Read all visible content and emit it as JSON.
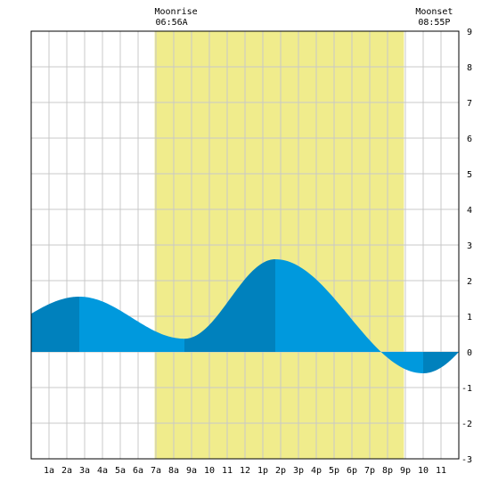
{
  "chart_data": {
    "type": "area",
    "title": "",
    "xlabel": "",
    "ylabel": "",
    "x_range": [
      0,
      24
    ],
    "ylim": [
      -3,
      9
    ],
    "grid": true,
    "x_ticks": [
      {
        "hour": 1,
        "label": "1a"
      },
      {
        "hour": 2,
        "label": "2a"
      },
      {
        "hour": 3,
        "label": "3a"
      },
      {
        "hour": 4,
        "label": "4a"
      },
      {
        "hour": 5,
        "label": "5a"
      },
      {
        "hour": 6,
        "label": "6a"
      },
      {
        "hour": 7,
        "label": "7a"
      },
      {
        "hour": 8,
        "label": "8a"
      },
      {
        "hour": 9,
        "label": "9a"
      },
      {
        "hour": 10,
        "label": "10"
      },
      {
        "hour": 11,
        "label": "11"
      },
      {
        "hour": 12,
        "label": "12"
      },
      {
        "hour": 13,
        "label": "1p"
      },
      {
        "hour": 14,
        "label": "2p"
      },
      {
        "hour": 15,
        "label": "3p"
      },
      {
        "hour": 16,
        "label": "4p"
      },
      {
        "hour": 17,
        "label": "5p"
      },
      {
        "hour": 18,
        "label": "6p"
      },
      {
        "hour": 19,
        "label": "7p"
      },
      {
        "hour": 20,
        "label": "8p"
      },
      {
        "hour": 21,
        "label": "9p"
      },
      {
        "hour": 22,
        "label": "10"
      },
      {
        "hour": 23,
        "label": "11"
      }
    ],
    "y_ticks": [
      -3,
      -2,
      -1,
      0,
      1,
      2,
      3,
      4,
      5,
      6,
      7,
      8,
      9
    ],
    "tide_extremes": [
      {
        "hour": 2.7,
        "height": 1.55,
        "kind": "high"
      },
      {
        "hour": 8.6,
        "height": 0.37,
        "kind": "low"
      },
      {
        "hour": 13.7,
        "height": 2.6,
        "kind": "high"
      },
      {
        "hour": 22.0,
        "height": -0.6,
        "kind": "low"
      }
    ],
    "tide_start": {
      "hour": 0,
      "height": 0.62
    },
    "tide_end": {
      "hour": 24,
      "height": -0.03
    },
    "moon": {
      "rise_label": "Moonrise",
      "rise_time": "06:56A",
      "rise_hour": 6.93,
      "set_label": "Moonset",
      "set_time": "08:55P",
      "set_hour": 20.92
    },
    "colors": {
      "moon_band": "#f0ec8c",
      "tide_light": "#0099dd",
      "tide_dark": "#0081bd",
      "grid": "#c8c8c8",
      "border": "#000000"
    }
  }
}
